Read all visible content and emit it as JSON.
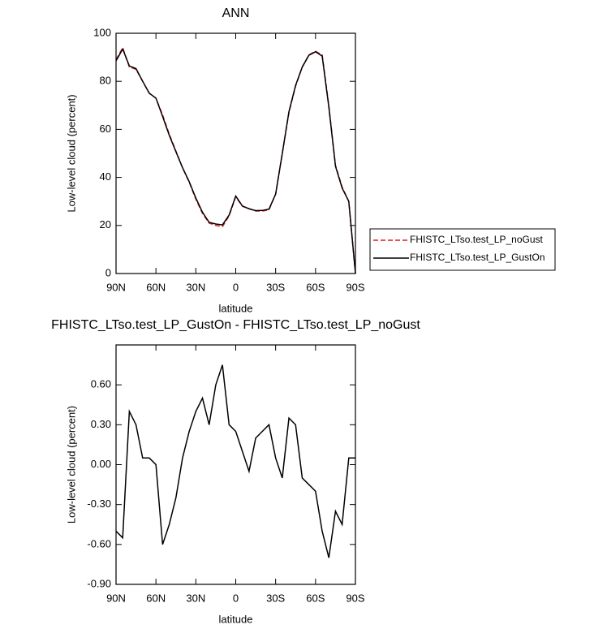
{
  "chart_data": [
    {
      "type": "line",
      "title": "ANN",
      "xlabel": "latitude",
      "ylabel": "Low-level cloud (percent)",
      "x": [
        90,
        85,
        80,
        75,
        70,
        65,
        60,
        55,
        50,
        45,
        40,
        35,
        30,
        25,
        20,
        15,
        10,
        5,
        0,
        -5,
        -10,
        -15,
        -20,
        -25,
        -30,
        -35,
        -40,
        -45,
        -50,
        -55,
        -60,
        -65,
        -70,
        -75,
        -80,
        -85,
        -90
      ],
      "series": [
        {
          "name": "FHISTC_LTso.test_LP_noGust",
          "color": "#e41a1c",
          "dash": true,
          "values": [
            89,
            94,
            86,
            85,
            80,
            75,
            73,
            66,
            58,
            51,
            44,
            38,
            31,
            25,
            21,
            20,
            19.5,
            24,
            32,
            28,
            27,
            26,
            26,
            26.5,
            33,
            50,
            67,
            78,
            86,
            91,
            92.5,
            91,
            70,
            45,
            36,
            30,
            0
          ]
        },
        {
          "name": "FHISTC_LTso.test_LP_GustOn",
          "color": "#000000",
          "dash": false,
          "values": [
            88.5,
            93.45,
            86.4,
            85.3,
            80.05,
            75.05,
            73,
            65.4,
            57.55,
            50.75,
            44.05,
            38.25,
            31.4,
            25.5,
            21.3,
            20.6,
            20.25,
            24.3,
            32.25,
            28.1,
            26.95,
            26.2,
            26.25,
            26.8,
            33.05,
            49.9,
            67.35,
            78.3,
            85.9,
            90.85,
            92.3,
            90.5,
            69.3,
            44.65,
            35.55,
            30.05,
            0.05
          ]
        }
      ],
      "xlim": [
        90,
        -90
      ],
      "xticks": [
        {
          "value": 90,
          "label": "90N"
        },
        {
          "value": 60,
          "label": "60N"
        },
        {
          "value": 30,
          "label": "30N"
        },
        {
          "value": 0,
          "label": "0"
        },
        {
          "value": -30,
          "label": "30S"
        },
        {
          "value": -60,
          "label": "60S"
        },
        {
          "value": -90,
          "label": "90S"
        }
      ],
      "ylim": [
        0,
        100
      ],
      "yticks": [
        0,
        20,
        40,
        60,
        80,
        100
      ],
      "legend": "right"
    },
    {
      "type": "line",
      "title": "FHISTC_LTso.test_LP_GustOn - FHISTC_LTso.test_LP_noGust",
      "xlabel": "latitude",
      "ylabel": "Low-level cloud (percent)",
      "x": [
        90,
        85,
        80,
        75,
        70,
        65,
        60,
        55,
        50,
        45,
        40,
        35,
        30,
        25,
        20,
        15,
        10,
        5,
        0,
        -5,
        -10,
        -15,
        -20,
        -25,
        -30,
        -35,
        -40,
        -45,
        -50,
        -55,
        -60,
        -65,
        -70,
        -75,
        -80,
        -85,
        -90
      ],
      "series": [
        {
          "color": "#000000",
          "dash": false,
          "values": [
            -0.5,
            -0.55,
            0.4,
            0.3,
            0.05,
            0.05,
            0.0,
            -0.6,
            -0.45,
            -0.25,
            0.05,
            0.25,
            0.4,
            0.5,
            0.3,
            0.6,
            0.75,
            0.3,
            0.25,
            0.1,
            -0.05,
            0.2,
            0.25,
            0.3,
            0.05,
            -0.1,
            0.35,
            0.3,
            -0.1,
            -0.15,
            -0.2,
            -0.5,
            -0.7,
            -0.35,
            -0.45,
            0.05,
            0.05
          ]
        }
      ],
      "xlim": [
        90,
        -90
      ],
      "xticks": [
        {
          "value": 90,
          "label": "90N"
        },
        {
          "value": 60,
          "label": "60N"
        },
        {
          "value": 30,
          "label": "30N"
        },
        {
          "value": 0,
          "label": "0"
        },
        {
          "value": -30,
          "label": "30S"
        },
        {
          "value": -60,
          "label": "60S"
        },
        {
          "value": -90,
          "label": "90S"
        }
      ],
      "ylim": [
        -0.9,
        0.9
      ],
      "yticks": [
        {
          "value": -0.9,
          "label": "-0.90"
        },
        {
          "value": -0.6,
          "label": "-0.60"
        },
        {
          "value": -0.3,
          "label": "-0.30"
        },
        {
          "value": 0,
          "label": "0.00"
        },
        {
          "value": 0.3,
          "label": "0.30"
        },
        {
          "value": 0.6,
          "label": "0.60"
        }
      ]
    }
  ]
}
